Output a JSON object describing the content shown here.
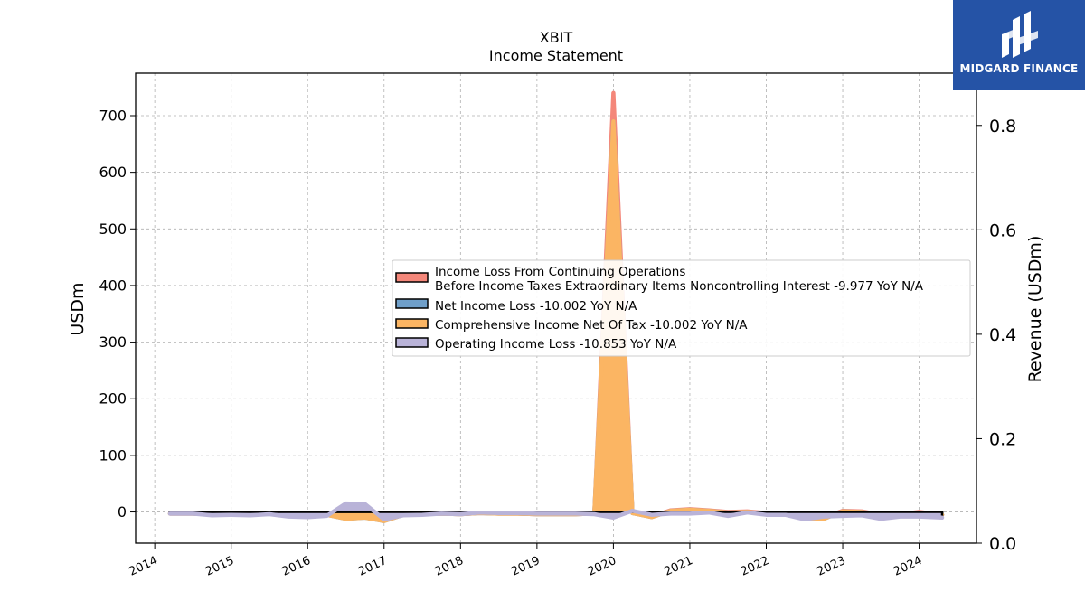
{
  "chart_data": {
    "type": "area",
    "title": "XBIT",
    "subtitle": "Income Statement",
    "ylabel": "USDm",
    "ylabel_right": "Revenue (USDm)",
    "ylim": [
      -55,
      775
    ],
    "ylim_right": [
      0,
      0.9
    ],
    "yticks": [
      0,
      100,
      200,
      300,
      400,
      500,
      600,
      700
    ],
    "yticks_right": [
      "0.0",
      "0.2",
      "0.4",
      "0.6",
      "0.8"
    ],
    "xlim": [
      2013.75,
      2024.75
    ],
    "xticks": [
      "2014",
      "2015",
      "2016",
      "2017",
      "2018",
      "2019",
      "2020",
      "2021",
      "2022",
      "2023",
      "2024"
    ],
    "grid": true,
    "legend_position": "center-right",
    "series": [
      {
        "name": "Income Loss From Continuing Operations\nBefore Income Taxes Extraordinary Items Noncontrolling Interest  -9.977 YoY N/A",
        "color": "#f4877a",
        "x": [
          2014.2,
          2014.5,
          2014.75,
          2015.0,
          2015.25,
          2015.5,
          2015.75,
          2016.0,
          2016.25,
          2016.5,
          2016.75,
          2017.0,
          2017.25,
          2017.5,
          2017.75,
          2018.0,
          2018.25,
          2018.5,
          2018.75,
          2019.0,
          2019.25,
          2019.5,
          2019.75,
          2020.0,
          2020.25,
          2020.5,
          2020.75,
          2021.0,
          2021.25,
          2021.5,
          2021.75,
          2022.0,
          2022.25,
          2022.5,
          2022.75,
          2023.0,
          2023.25,
          2023.5,
          2023.75,
          2024.0,
          2024.3
        ],
        "values": [
          -3,
          -3,
          -4,
          -3,
          -3,
          -3,
          -6,
          -5,
          -4,
          -8,
          -7,
          -15,
          -5,
          -4,
          -3,
          -4,
          -2,
          -3,
          -3,
          -4,
          -4,
          -4,
          -3,
          740,
          -2,
          -8,
          3,
          5,
          3,
          0,
          1,
          -2,
          -3,
          -8,
          -10,
          2,
          1,
          -5,
          -4,
          0,
          -5
        ]
      },
      {
        "name": "Net Income Loss  -10.002 YoY N/A",
        "color": "#6f9fc9",
        "x": [
          2014.2,
          2014.5,
          2014.75,
          2015.0,
          2015.25,
          2015.5,
          2015.75,
          2016.0,
          2016.25,
          2016.5,
          2016.75,
          2017.0,
          2017.25,
          2017.5,
          2017.75,
          2018.0,
          2018.25,
          2018.5,
          2018.75,
          2019.0,
          2019.25,
          2019.5,
          2019.75,
          2020.0,
          2020.25,
          2020.5,
          2020.75,
          2021.0,
          2021.25,
          2021.5,
          2021.75,
          2022.0,
          2022.25,
          2022.5,
          2022.75,
          2023.0,
          2023.25,
          2023.5,
          2023.75,
          2024.0,
          2024.3
        ],
        "values": [
          -3,
          -3,
          -4,
          -3,
          -4,
          -3,
          -6,
          -6,
          -5,
          -12,
          -10,
          -16,
          -5,
          -4,
          -3,
          -4,
          -2,
          -3,
          -3,
          -4,
          -4,
          -4,
          -3,
          690,
          -2,
          -9,
          2,
          4,
          2,
          -1,
          0,
          -3,
          -4,
          -12,
          -12,
          1,
          0,
          -6,
          -4,
          -1,
          -5
        ]
      },
      {
        "name": "Comprehensive Income Net Of Tax  -10.002 YoY N/A",
        "color": "#fbb563",
        "x": [
          2014.2,
          2014.5,
          2014.75,
          2015.0,
          2015.25,
          2015.5,
          2015.75,
          2016.0,
          2016.25,
          2016.5,
          2016.75,
          2017.0,
          2017.25,
          2017.5,
          2017.75,
          2018.0,
          2018.25,
          2018.5,
          2018.75,
          2019.0,
          2019.25,
          2019.5,
          2019.75,
          2020.0,
          2020.25,
          2020.5,
          2020.75,
          2021.0,
          2021.25,
          2021.5,
          2021.75,
          2022.0,
          2022.25,
          2022.5,
          2022.75,
          2023.0,
          2023.25,
          2023.5,
          2023.75,
          2024.0,
          2024.3
        ],
        "values": [
          -3,
          -3,
          -4,
          -3,
          -4,
          -3,
          -6,
          -6,
          -5,
          -12,
          -10,
          -16,
          -5,
          -4,
          -3,
          -4,
          -2,
          -3,
          -3,
          -4,
          -4,
          -4,
          -3,
          690,
          -2,
          -9,
          2,
          4,
          2,
          -1,
          0,
          -3,
          -4,
          -12,
          -12,
          1,
          0,
          -6,
          -4,
          -1,
          -5
        ]
      },
      {
        "name": "Operating Income Loss  -10.853 YoY N/A",
        "color": "#b9b3d8",
        "x": [
          2014.2,
          2014.5,
          2014.75,
          2015.0,
          2015.25,
          2015.5,
          2015.75,
          2016.0,
          2016.25,
          2016.5,
          2016.75,
          2017.0,
          2017.25,
          2017.5,
          2017.75,
          2018.0,
          2018.25,
          2018.5,
          2018.75,
          2019.0,
          2019.25,
          2019.5,
          2019.75,
          2020.0,
          2020.25,
          2020.5,
          2020.75,
          2021.0,
          2021.25,
          2021.5,
          2021.75,
          2022.0,
          2022.25,
          2022.5,
          2022.75,
          2023.0,
          2023.25,
          2023.5,
          2023.75,
          2024.0,
          2024.3
        ],
        "values": [
          -3,
          -3,
          -6,
          -5,
          -6,
          -4,
          -8,
          -9,
          -7,
          15,
          14,
          -13,
          -6,
          -5,
          -3,
          -4,
          -1,
          -2,
          -2,
          -3,
          -3,
          -3,
          -4,
          -10,
          2,
          -5,
          -3,
          -3,
          -1,
          -7,
          -1,
          -5,
          -5,
          -13,
          -8,
          -7,
          -6,
          -12,
          -8,
          -8,
          -10
        ]
      }
    ]
  },
  "logo": {
    "text": "MIDGARD FINANCE",
    "background": "#2553a6"
  }
}
